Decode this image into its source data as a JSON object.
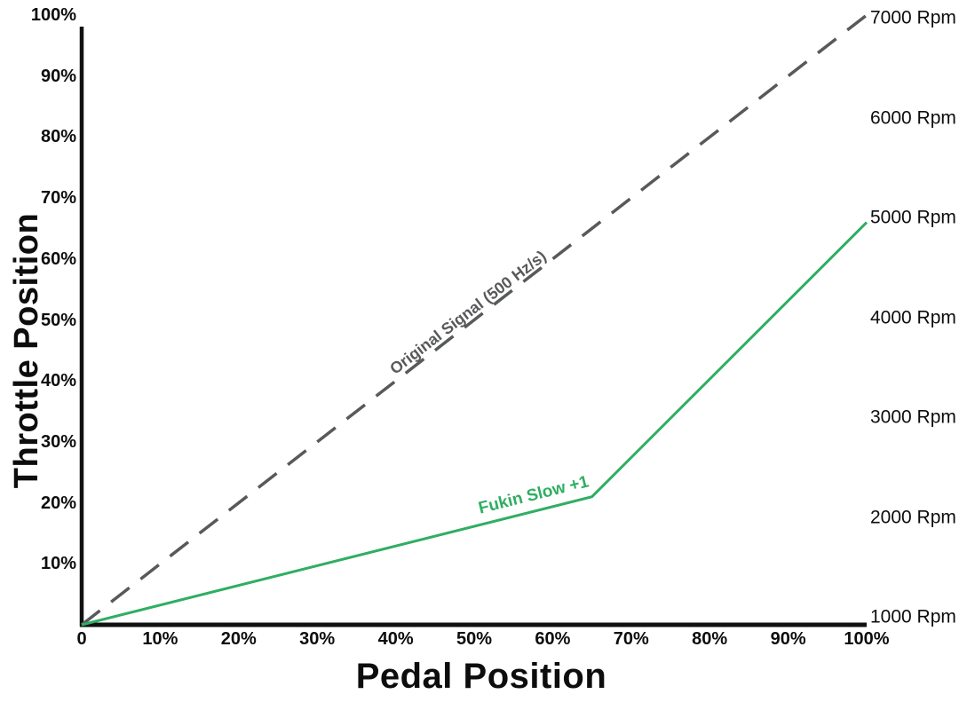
{
  "colors": {
    "background": "#ffffff",
    "axis": "#111111",
    "tick_text": "#0d0d0d",
    "original_signal_gray": "#58595b",
    "fukin_slow_green": "#2fae62"
  },
  "chart_data": {
    "type": "line",
    "title": "",
    "xlabel": "Pedal Position",
    "ylabel": "Throttle Position",
    "grid": false,
    "xlim": [
      0,
      100
    ],
    "ylim_left": [
      0,
      100
    ],
    "ylim_right": [
      1000,
      7000
    ],
    "x_axis": {
      "ticks": [
        {
          "value": 0,
          "label": "0"
        },
        {
          "value": 10,
          "label": "10%"
        },
        {
          "value": 20,
          "label": "20%"
        },
        {
          "value": 30,
          "label": "30%"
        },
        {
          "value": 40,
          "label": "40%"
        },
        {
          "value": 50,
          "label": "50%"
        },
        {
          "value": 60,
          "label": "60%"
        },
        {
          "value": 70,
          "label": "70%"
        },
        {
          "value": 80,
          "label": "80%"
        },
        {
          "value": 90,
          "label": "90%"
        },
        {
          "value": 100,
          "label": "100%"
        }
      ]
    },
    "y_axis_left": {
      "ticks": [
        {
          "value": 100,
          "label": "100%"
        },
        {
          "value": 90,
          "label": "90%"
        },
        {
          "value": 80,
          "label": "80%"
        },
        {
          "value": 70,
          "label": "70%"
        },
        {
          "value": 60,
          "label": "60%"
        },
        {
          "value": 50,
          "label": "50%"
        },
        {
          "value": 40,
          "label": "40%"
        },
        {
          "value": 30,
          "label": "30%"
        },
        {
          "value": 20,
          "label": "20%"
        },
        {
          "value": 10,
          "label": "10%"
        }
      ]
    },
    "y_axis_right": {
      "ticks": [
        {
          "value": 7000,
          "label": "7000 Rpm"
        },
        {
          "value": 6000,
          "label": "6000 Rpm"
        },
        {
          "value": 5000,
          "label": "5000 Rpm"
        },
        {
          "value": 4000,
          "label": "4000 Rpm"
        },
        {
          "value": 3000,
          "label": "3000 Rpm"
        },
        {
          "value": 2000,
          "label": "2000 Rpm"
        },
        {
          "value": 1000,
          "label": "1000 Rpm"
        }
      ]
    },
    "series": [
      {
        "name": "Original Signal (500 Hz/s)",
        "style": "dashed",
        "color": "#58595b",
        "x": [
          0,
          100
        ],
        "y": [
          0,
          100
        ]
      },
      {
        "name": "Fukin Slow +1",
        "style": "solid",
        "color": "#2fae62",
        "x": [
          0,
          65,
          100
        ],
        "y": [
          0,
          21,
          66
        ]
      }
    ]
  }
}
